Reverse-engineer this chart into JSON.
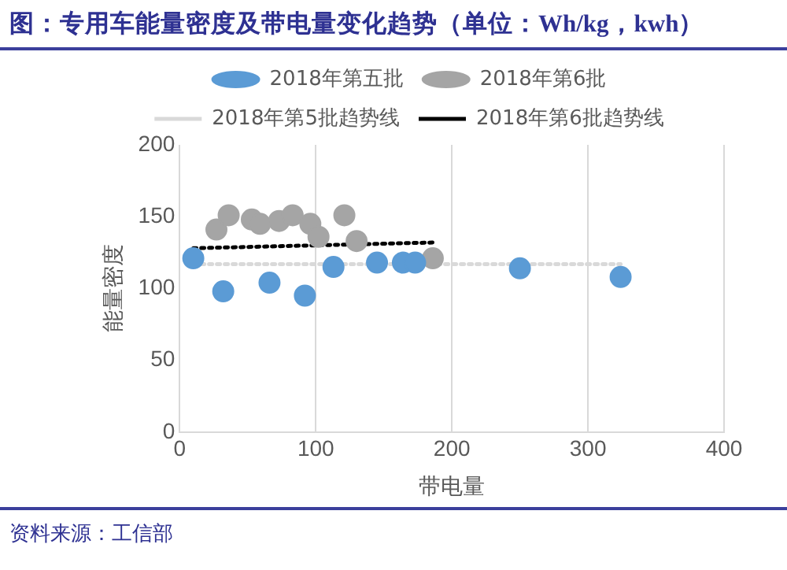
{
  "chart_data": {
    "type": "scatter",
    "title": "图：专用车能量密度及带电量变化趋势（单位：Wh/kg，kwh）",
    "xlabel": "带电量",
    "ylabel": "能量密度",
    "annotations": [
      "资料来源：工信部"
    ],
    "grid": "x",
    "legend": "top",
    "xlim": [
      0,
      400
    ],
    "xticks": [
      0,
      100,
      200,
      300,
      400
    ],
    "ylim": [
      0,
      200
    ],
    "yticks": [
      0,
      50,
      100,
      150,
      200
    ],
    "series": [
      {
        "name": "2018年第五批",
        "marker": "circle",
        "color": "#5b9bd5",
        "x": [
          10,
          32,
          66,
          92,
          113,
          145,
          164,
          173,
          250,
          324
        ],
        "values": [
          121,
          98,
          104,
          95,
          115,
          118,
          118,
          118,
          114,
          108
        ]
      },
      {
        "name": "2018年第6批",
        "marker": "circle",
        "color": "#a5a5a5",
        "x": [
          27,
          36,
          53,
          59,
          73,
          83,
          96,
          102,
          121,
          130,
          186
        ],
        "values": [
          141,
          151,
          148,
          145,
          147,
          151,
          145,
          136,
          151,
          133,
          121
        ]
      },
      {
        "name": "2018年第5批趋势线",
        "type": "line",
        "marker": "none",
        "line_style": "dotted",
        "color": "#d9d9d9",
        "x": [
          10,
          324
        ],
        "values": [
          117,
          117
        ]
      },
      {
        "name": "2018年第6批趋势线",
        "type": "line",
        "marker": "none",
        "line_style": "dotted",
        "color": "#000000",
        "x": [
          10,
          186
        ],
        "values": [
          128,
          132
        ]
      }
    ]
  }
}
